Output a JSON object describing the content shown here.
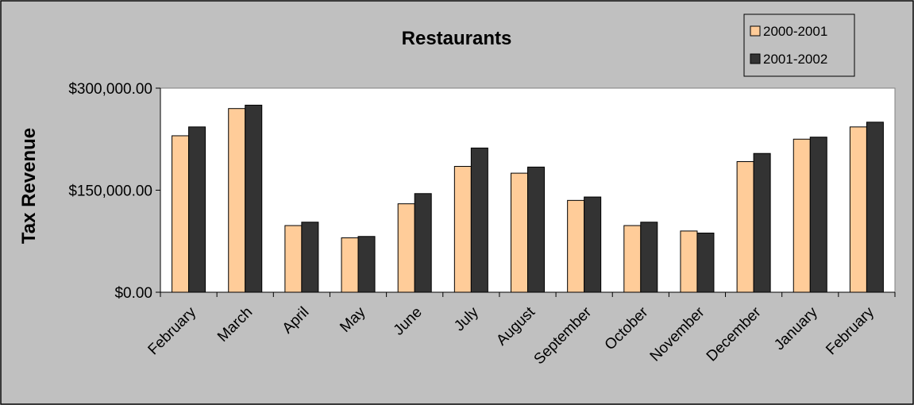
{
  "chart_data": {
    "type": "bar",
    "title": "Restaurants",
    "xlabel": "",
    "ylabel": "Tax Revenue",
    "ylim": [
      0,
      300000
    ],
    "yticks": [
      0,
      150000,
      300000
    ],
    "ytick_labels": [
      "$0.00",
      "$150,000.00",
      "$300,000.00"
    ],
    "grid": false,
    "legend_position": "top-right",
    "categories": [
      "February",
      "March",
      "April",
      "May",
      "June",
      "July",
      "August",
      "September",
      "October",
      "November",
      "December",
      "January",
      "February"
    ],
    "series": [
      {
        "name": "2000-2001",
        "values": [
          230000,
          270000,
          98000,
          80000,
          130000,
          185000,
          175000,
          135000,
          98000,
          90000,
          192000,
          225000,
          243000
        ]
      },
      {
        "name": "2001-2002",
        "values": [
          243000,
          275000,
          103000,
          82000,
          145000,
          212000,
          184000,
          140000,
          103000,
          87000,
          204000,
          228000,
          250000
        ]
      }
    ],
    "colors": {
      "series": [
        "#FFCC99",
        "#333333"
      ],
      "background": "#C0C0C0",
      "plot_area": "#FFFFFF",
      "border": "#000000"
    }
  }
}
